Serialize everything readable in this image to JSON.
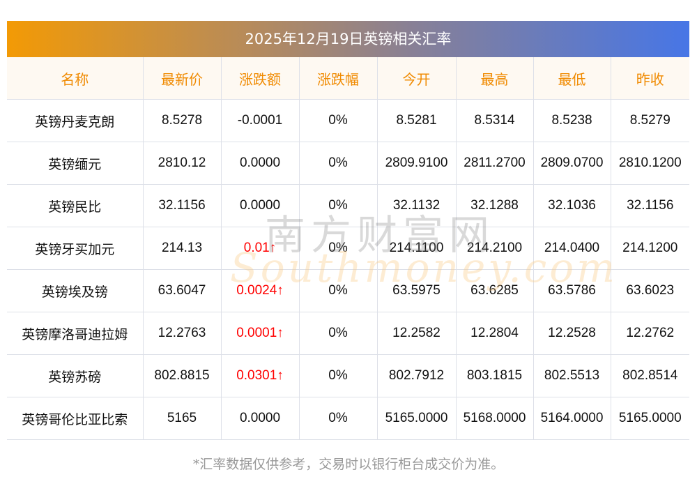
{
  "title": "2025年12月19日英镑相关汇率",
  "headers": [
    "名称",
    "最新价",
    "涨跌额",
    "涨跌幅",
    "今开",
    "最高",
    "最低",
    "昨收"
  ],
  "rows": [
    {
      "cells": [
        "英镑丹麦克朗",
        "8.5278",
        "-0.0001",
        "0%",
        "8.5281",
        "8.5314",
        "8.5238",
        "8.5279"
      ],
      "up": false
    },
    {
      "cells": [
        "英镑缅元",
        "2810.12",
        "0.0000",
        "0%",
        "2809.9100",
        "2811.2700",
        "2809.0700",
        "2810.1200"
      ],
      "up": false
    },
    {
      "cells": [
        "英镑民比",
        "32.1156",
        "0.0000",
        "0%",
        "32.1132",
        "32.1288",
        "32.1036",
        "32.1156"
      ],
      "up": false
    },
    {
      "cells": [
        "英镑牙买加元",
        "214.13",
        "0.01↑",
        "0%",
        "214.1100",
        "214.2100",
        "214.0400",
        "214.1200"
      ],
      "up": true
    },
    {
      "cells": [
        "英镑埃及镑",
        "63.6047",
        "0.0024↑",
        "0%",
        "63.5975",
        "63.6285",
        "63.5786",
        "63.6023"
      ],
      "up": true
    },
    {
      "cells": [
        "英镑摩洛哥迪拉姆",
        "12.2763",
        "0.0001↑",
        "0%",
        "12.2582",
        "12.2804",
        "12.2528",
        "12.2762"
      ],
      "up": true
    },
    {
      "cells": [
        "英镑苏磅",
        "802.8815",
        "0.0301↑",
        "0%",
        "802.7912",
        "803.1815",
        "802.5513",
        "802.8514"
      ],
      "up": true
    },
    {
      "cells": [
        "英镑哥伦比亚比索",
        "5165",
        "0.0000",
        "0%",
        "5165.0000",
        "5168.0000",
        "5164.0000",
        "5165.0000"
      ],
      "up": false
    }
  ],
  "watermark": {
    "cn": "南方财富网",
    "en": "Southmoney.com"
  },
  "note": "*汇率数据仅供参考，交易时以银行柜台成交价为准。",
  "colors": {
    "up": "#ff0000",
    "header_text": "#f08a00"
  }
}
